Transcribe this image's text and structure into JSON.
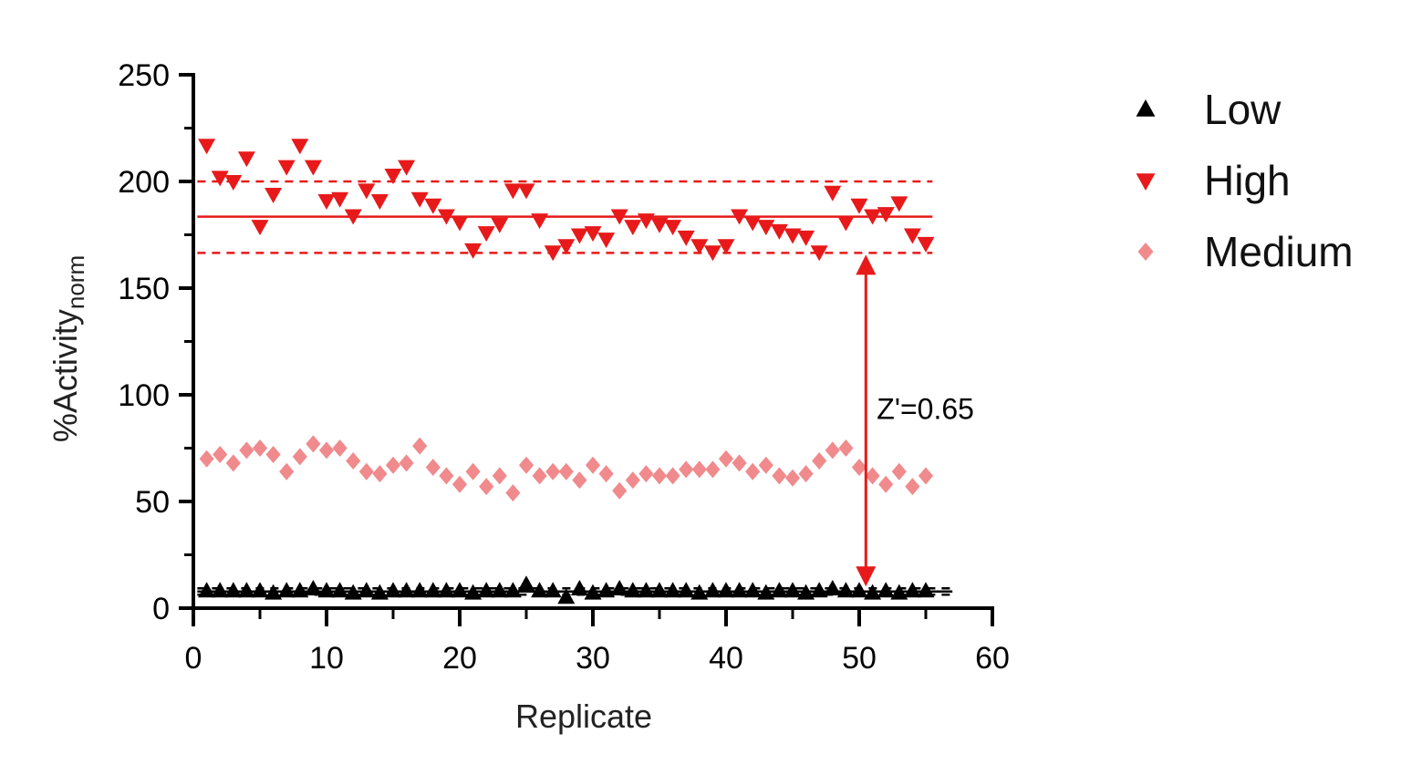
{
  "chart_data": {
    "type": "scatter",
    "xlabel": "Replicate",
    "ylabel_main": "%Activity",
    "ylabel_sub": "norm",
    "xlim": [
      0,
      60
    ],
    "ylim": [
      0,
      250
    ],
    "xticks": [
      0,
      10,
      20,
      30,
      40,
      50,
      60
    ],
    "yticks": [
      0,
      50,
      100,
      150,
      200,
      250
    ],
    "grid": false,
    "legend_position": "top-right",
    "series": [
      {
        "name": "Low",
        "marker": "triangle-up",
        "color": "#000000",
        "x": [
          1,
          2,
          3,
          4,
          5,
          6,
          7,
          8,
          9,
          10,
          11,
          12,
          13,
          14,
          15,
          16,
          17,
          18,
          19,
          20,
          21,
          22,
          23,
          24,
          25,
          26,
          27,
          28,
          29,
          30,
          31,
          32,
          33,
          34,
          35,
          36,
          37,
          38,
          39,
          40,
          41,
          42,
          43,
          44,
          45,
          46,
          47,
          48,
          49,
          50,
          51,
          52,
          53,
          54,
          55
        ],
        "y": [
          8,
          8,
          8,
          8,
          8,
          7,
          8,
          8,
          9,
          8,
          8,
          7,
          8,
          7,
          8,
          8,
          8,
          8,
          8,
          8,
          7,
          8,
          8,
          8,
          11,
          8,
          8,
          5,
          9,
          7,
          8,
          9,
          8,
          8,
          8,
          8,
          8,
          7,
          8,
          8,
          8,
          8,
          7,
          8,
          8,
          7,
          8,
          9,
          8,
          8,
          7,
          8,
          7,
          8,
          8
        ]
      },
      {
        "name": "High",
        "marker": "triangle-down",
        "color": "#e8191a",
        "x": [
          1,
          2,
          3,
          4,
          5,
          6,
          7,
          8,
          9,
          10,
          11,
          12,
          13,
          14,
          15,
          16,
          17,
          18,
          19,
          20,
          21,
          22,
          23,
          24,
          25,
          26,
          27,
          28,
          29,
          30,
          31,
          32,
          33,
          34,
          35,
          36,
          37,
          38,
          39,
          40,
          41,
          42,
          43,
          44,
          45,
          46,
          47,
          48,
          49,
          50,
          51,
          52,
          53,
          54,
          55
        ],
        "y": [
          217,
          202,
          200,
          211,
          179,
          194,
          207,
          217,
          207,
          191,
          192,
          184,
          196,
          191,
          203,
          207,
          192,
          189,
          184,
          181,
          168,
          176,
          180,
          196,
          196,
          182,
          167,
          170,
          175,
          176,
          173,
          184,
          179,
          182,
          180,
          179,
          174,
          170,
          167,
          170,
          184,
          181,
          179,
          177,
          175,
          174,
          167,
          195,
          181,
          189,
          184,
          185,
          190,
          175,
          171
        ]
      },
      {
        "name": "Medium",
        "marker": "diamond",
        "color": "#f08a8c",
        "x": [
          1,
          2,
          3,
          4,
          5,
          6,
          7,
          8,
          9,
          10,
          11,
          12,
          13,
          14,
          15,
          16,
          17,
          18,
          19,
          20,
          21,
          22,
          23,
          24,
          25,
          26,
          27,
          28,
          29,
          30,
          31,
          32,
          33,
          34,
          35,
          36,
          37,
          38,
          39,
          40,
          41,
          42,
          43,
          44,
          45,
          46,
          47,
          48,
          49,
          50,
          51,
          52,
          53,
          54,
          55
        ],
        "y": [
          70,
          72,
          68,
          74,
          75,
          72,
          64,
          71,
          77,
          74,
          75,
          69,
          64,
          63,
          67,
          68,
          76,
          66,
          62,
          58,
          64,
          57,
          62,
          54,
          67,
          62,
          64,
          64,
          60,
          67,
          63,
          55,
          60,
          63,
          62,
          62,
          65,
          65,
          65,
          70,
          68,
          64,
          67,
          62,
          61,
          63,
          69,
          74,
          75,
          66,
          62,
          58,
          64,
          57,
          62
        ]
      }
    ],
    "lines": [
      {
        "series": "High",
        "kind": "mean",
        "y": 183.5,
        "x_range": [
          0.3,
          55.5
        ],
        "color": "#e8191a",
        "style": "solid"
      },
      {
        "series": "High",
        "kind": "mean+3sd",
        "y": 200,
        "x_range": [
          0.3,
          55.5
        ],
        "color": "#e8191a",
        "style": "dashed"
      },
      {
        "series": "High",
        "kind": "mean-3sd",
        "y": 166.5,
        "x_range": [
          0.3,
          55.5
        ],
        "color": "#e8191a",
        "style": "dashed"
      },
      {
        "series": "Low",
        "kind": "mean",
        "y": 7.8,
        "x_range": [
          0.3,
          57
        ],
        "color": "#000000",
        "style": "solid"
      },
      {
        "series": "Low",
        "kind": "mean+3sd",
        "y": 9.3,
        "x_range": [
          0.3,
          57
        ],
        "color": "#000000",
        "style": "dashed"
      },
      {
        "series": "Low",
        "kind": "mean-3sd",
        "y": 6.3,
        "x_range": [
          0.3,
          57
        ],
        "color": "#000000",
        "style": "dashed"
      }
    ],
    "annotation": {
      "text": "Z'=0.65",
      "arrow_x": 50.5,
      "arrow_y_top": 166.5,
      "arrow_y_bottom": 9.3,
      "color": "#e8191a"
    }
  }
}
